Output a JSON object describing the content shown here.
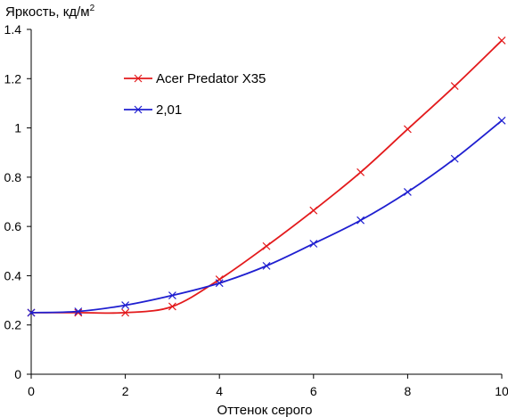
{
  "chart_data": {
    "type": "line",
    "title": "",
    "ylabel": "Яркость, кд/м",
    "ylabel_sup": "2",
    "xlabel": "Оттенок серого",
    "xlim": [
      0,
      10
    ],
    "ylim": [
      0,
      1.4
    ],
    "x_ticks": [
      0,
      2,
      4,
      6,
      8,
      10
    ],
    "y_ticks": [
      0,
      0.2,
      0.4,
      0.6,
      0.8,
      1,
      1.2,
      1.4
    ],
    "y_tick_labels": [
      "0",
      "0.2",
      "0.4",
      "0.6",
      "0.8",
      "1",
      "1.2",
      "1.4"
    ],
    "x_tick_labels": [
      "0",
      "2",
      "4",
      "6",
      "8",
      "10"
    ],
    "grid": false,
    "legend_position": "upper-left-inside",
    "x": [
      0,
      1,
      2,
      3,
      4,
      5,
      6,
      7,
      8,
      9,
      10
    ],
    "series": [
      {
        "name": "Acer Predator X35",
        "color": "#e31a1c",
        "marker": "x",
        "values": [
          0.25,
          0.25,
          0.25,
          0.275,
          0.385,
          0.52,
          0.665,
          0.82,
          0.995,
          1.17,
          1.355
        ]
      },
      {
        "name": "2,01",
        "color": "#1f1fd0",
        "marker": "x",
        "values": [
          0.25,
          0.255,
          0.28,
          0.32,
          0.37,
          0.44,
          0.53,
          0.625,
          0.74,
          0.875,
          1.03
        ]
      }
    ]
  }
}
